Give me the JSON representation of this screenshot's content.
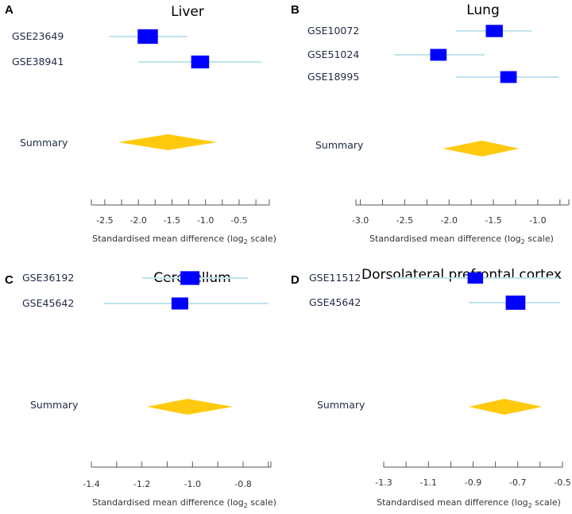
{
  "chart_data": [
    {
      "type": "forest",
      "panel": "A",
      "title": "Liver",
      "xlabel_main": "Standardised mean difference (log",
      "xlabel_sub": "2",
      "xlabel_tail": " scale)",
      "summary_label": "Summary",
      "xlim": [
        -2.7,
        -0.05
      ],
      "ticks": [
        -2.5,
        -2.0,
        -1.5,
        -1.0,
        -0.5
      ],
      "tick_labels": [
        "-2.5",
        "-2.0",
        "-1.5",
        "-1.0",
        "-0.5"
      ],
      "studies": [
        {
          "name": "GSE23649",
          "estimate": -1.86,
          "lower": -2.43,
          "upper": -1.27,
          "weight": 0.62
        },
        {
          "name": "GSE38941",
          "estimate": -1.08,
          "lower": -2.0,
          "upper": -0.17,
          "weight": 0.38
        }
      ],
      "summary": {
        "estimate": -1.56,
        "lower": -2.3,
        "upper": -0.83
      }
    },
    {
      "type": "forest",
      "panel": "B",
      "title": "Lung",
      "xlabel_main": "Standardised mean difference (log",
      "xlabel_sub": "2",
      "xlabel_tail": " scale)",
      "summary_label": "Summary",
      "xlim": [
        -3.05,
        -0.65
      ],
      "ticks": [
        -3.0,
        -2.5,
        -2.0,
        -1.5,
        -1.0
      ],
      "tick_labels": [
        "-3.0",
        "-2.5",
        "-2.0",
        "-1.5",
        "-1.0"
      ],
      "studies": [
        {
          "name": "GSE10072",
          "estimate": -1.49,
          "lower": -1.92,
          "upper": -1.07,
          "weight": 0.38
        },
        {
          "name": "GSE51024",
          "estimate": -2.12,
          "lower": -2.61,
          "upper": -1.6,
          "weight": 0.3
        },
        {
          "name": "GSE18995",
          "estimate": -1.33,
          "lower": -1.92,
          "upper": -0.76,
          "weight": 0.3
        }
      ],
      "summary": {
        "estimate": -1.63,
        "lower": -2.07,
        "upper": -1.21
      }
    },
    {
      "type": "forest",
      "panel": "C",
      "title": "Cerebellum",
      "xlabel_main": "Standardised mean difference (log",
      "xlabel_sub": "2",
      "xlabel_tail": " scale)",
      "summary_label": "Summary",
      "xlim": [
        -1.4,
        -0.69
      ],
      "ticks": [
        -1.4,
        -1.2,
        -1.0,
        -0.8
      ],
      "tick_labels": [
        "-1.4",
        "-1.2",
        "-1.0",
        "-0.8"
      ],
      "studies": [
        {
          "name": "GSE36192",
          "estimate": -1.01,
          "lower": -1.2,
          "upper": -0.78,
          "weight": 0.6
        },
        {
          "name": "GSE45642",
          "estimate": -1.05,
          "lower": -1.35,
          "upper": -0.7,
          "weight": 0.4
        }
      ],
      "summary": {
        "estimate": -1.02,
        "lower": -1.18,
        "upper": -0.84
      }
    },
    {
      "type": "forest",
      "panel": "D",
      "title": "Dorsolateral prefrontal cortex",
      "xlabel_main": "Standardised mean difference (log",
      "xlabel_sub": "2",
      "xlabel_tail": " scale)",
      "summary_label": "Summary",
      "xlim": [
        -1.3,
        -0.5
      ],
      "ticks": [
        -1.3,
        -1.1,
        -0.9,
        -0.7,
        -0.5
      ],
      "tick_labels": [
        "-1.3",
        "-1.1",
        "-0.9",
        "-0.7",
        "-0.5"
      ],
      "studies": [
        {
          "name": "GSE11512",
          "estimate": -0.89,
          "lower": -1.27,
          "upper": -0.52,
          "weight": 0.3
        },
        {
          "name": "GSE45642",
          "estimate": -0.71,
          "lower": -0.92,
          "upper": -0.51,
          "weight": 0.65
        }
      ],
      "summary": {
        "estimate": -0.76,
        "lower": -0.92,
        "upper": -0.59
      }
    }
  ]
}
